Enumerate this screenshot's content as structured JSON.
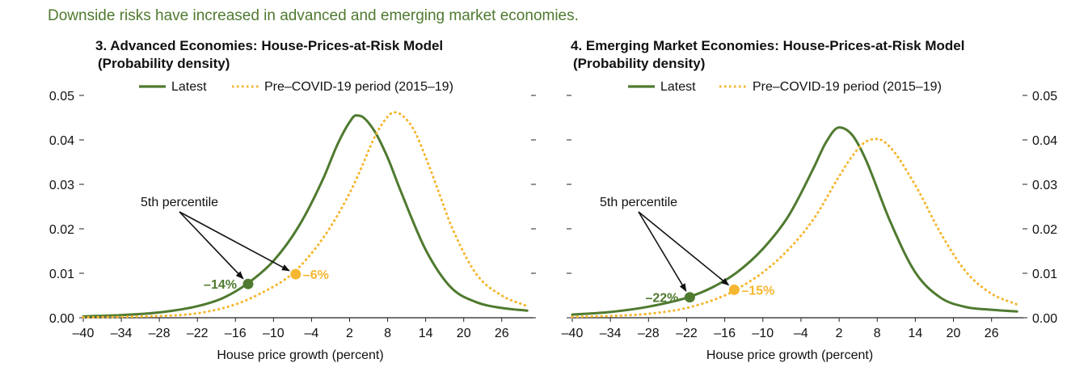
{
  "headline": "Downside risks have increased in advanced and emerging market economies.",
  "colors": {
    "latest": "#4f7a2f",
    "pre_covid": "#f5b731",
    "headline": "#4f7a2f",
    "arrow": "#111111"
  },
  "chart_data": [
    {
      "type": "line",
      "title": "3. Advanced Economies: House-Prices-at-Risk Model",
      "subtitle": "(Probability density)",
      "xlabel": "House price growth (percent)",
      "ylabel": "",
      "x_ticks": [
        "–40",
        "–34",
        "–28",
        "–22",
        "–16",
        "–10",
        "–4",
        "2",
        "8",
        "14",
        "20",
        "26"
      ],
      "y_ticks": [
        "0.00",
        "0.01",
        "0.02",
        "0.03",
        "0.04",
        "0.05"
      ],
      "xlim": [
        -40,
        31
      ],
      "ylim": [
        0,
        0.05
      ],
      "y_axis_side": "left",
      "grid": false,
      "legend_position": "top",
      "series": [
        {
          "name": "Latest",
          "style": "solid",
          "x": [
            -40,
            -34,
            -28,
            -22,
            -18,
            -14,
            -10,
            -6,
            -2,
            0,
            2,
            3,
            4,
            6,
            8,
            10,
            14,
            18,
            22,
            26,
            30
          ],
          "y": [
            0.0003,
            0.0006,
            0.0012,
            0.0026,
            0.0044,
            0.0078,
            0.0128,
            0.0206,
            0.0318,
            0.0387,
            0.044,
            0.0455,
            0.0452,
            0.0418,
            0.036,
            0.0287,
            0.0153,
            0.0068,
            0.0035,
            0.0022,
            0.0016
          ]
        },
        {
          "name": "Pre–COVID-19 period (2015–19)",
          "style": "dotted",
          "x": [
            -40,
            -34,
            -28,
            -22,
            -16,
            -12,
            -8,
            -6,
            -2,
            2,
            4,
            6,
            8,
            9,
            10,
            12,
            14,
            16,
            18,
            22,
            26,
            30
          ],
          "y": [
            0.0001,
            0.0002,
            0.0004,
            0.001,
            0.003,
            0.0055,
            0.0088,
            0.0113,
            0.0183,
            0.028,
            0.0342,
            0.0408,
            0.0452,
            0.0462,
            0.0458,
            0.0426,
            0.0361,
            0.0285,
            0.0208,
            0.0098,
            0.005,
            0.0026
          ]
        }
      ],
      "annotations": {
        "text": "5th percentile",
        "points": [
          {
            "series": "Latest",
            "x": -14,
            "y": 0.0076,
            "label": "–14%"
          },
          {
            "series": "Pre–COVID-19 period (2015–19)",
            "x": -6.5,
            "y": 0.0098,
            "label": "–6%"
          }
        ]
      }
    },
    {
      "type": "line",
      "title": "4. Emerging Market Economies: House-Prices-at-Risk Model",
      "subtitle": "(Probability density)",
      "xlabel": "House price growth (percent)",
      "ylabel": "",
      "x_ticks": [
        "–40",
        "–34",
        "–28",
        "–22",
        "–16",
        "–10",
        "–4",
        "2",
        "8",
        "14",
        "20",
        "26"
      ],
      "y_ticks": [
        "0.00",
        "0.01",
        "0.02",
        "0.03",
        "0.04",
        "0.05"
      ],
      "xlim": [
        -40,
        31
      ],
      "ylim": [
        0,
        0.05
      ],
      "y_axis_side": "right",
      "grid": false,
      "legend_position": "top",
      "series": [
        {
          "name": "Latest",
          "style": "solid",
          "x": [
            -40,
            -34,
            -28,
            -22,
            -18,
            -14,
            -10,
            -6,
            -2,
            0,
            2,
            4,
            6,
            10,
            14,
            18,
            22,
            26,
            30
          ],
          "y": [
            0.0007,
            0.0013,
            0.0025,
            0.0045,
            0.0068,
            0.0103,
            0.0155,
            0.0228,
            0.0337,
            0.0396,
            0.0428,
            0.0412,
            0.0362,
            0.0218,
            0.0102,
            0.0045,
            0.0024,
            0.0018,
            0.0014
          ]
        },
        {
          "name": "Pre–COVID-19 period (2015–19)",
          "style": "dotted",
          "x": [
            -40,
            -34,
            -28,
            -22,
            -16,
            -14,
            -10,
            -6,
            -2,
            2,
            4,
            6,
            8,
            10,
            14,
            18,
            22,
            26,
            30
          ],
          "y": [
            0.0002,
            0.0004,
            0.0009,
            0.0022,
            0.005,
            0.0065,
            0.0102,
            0.0153,
            0.0222,
            0.0318,
            0.0362,
            0.0394,
            0.0402,
            0.0384,
            0.0298,
            0.019,
            0.0103,
            0.0054,
            0.003
          ]
        }
      ],
      "annotations": {
        "text": "5th percentile",
        "points": [
          {
            "series": "Latest",
            "x": -21.5,
            "y": 0.0046,
            "label": "–22%"
          },
          {
            "series": "Pre–COVID-19 period (2015–19)",
            "x": -14.5,
            "y": 0.0063,
            "label": "–15%"
          }
        ]
      }
    }
  ]
}
